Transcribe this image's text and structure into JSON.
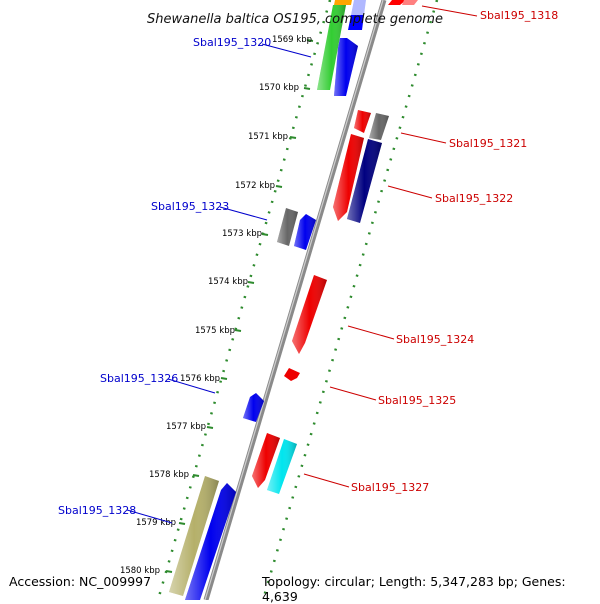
{
  "title": "Shewanella baltica OS195, complete genome",
  "accession": "Accession: NC_009997",
  "topology": "Topology: circular; Length: 5,347,283 bp; Genes: 4,639",
  "colors": {
    "backbone": "#8a8a8a",
    "scale_dots": "#2e8b2e",
    "forward_label": "#0000cc",
    "reverse_label": "#cc0000"
  },
  "scale_ticks": [
    "1569 kbp",
    "1570 kbp",
    "1571 kbp",
    "1572 kbp",
    "1573 kbp",
    "1574 kbp",
    "1575 kbp",
    "1576 kbp",
    "1577 kbp",
    "1578 kbp",
    "1579 kbp",
    "1580 kbp"
  ],
  "gene_labels": [
    {
      "name": "Sbal195_1318",
      "strand": "reverse"
    },
    {
      "name": "Sbal195_1320",
      "strand": "forward"
    },
    {
      "name": "Sbal195_1321",
      "strand": "reverse"
    },
    {
      "name": "Sbal195_1322",
      "strand": "reverse"
    },
    {
      "name": "Sbal195_1323",
      "strand": "forward"
    },
    {
      "name": "Sbal195_1324",
      "strand": "reverse"
    },
    {
      "name": "Sbal195_1325",
      "strand": "reverse"
    },
    {
      "name": "Sbal195_1326",
      "strand": "forward"
    },
    {
      "name": "Sbal195_1327",
      "strand": "reverse"
    },
    {
      "name": "Sbal195_1328",
      "strand": "forward"
    }
  ]
}
